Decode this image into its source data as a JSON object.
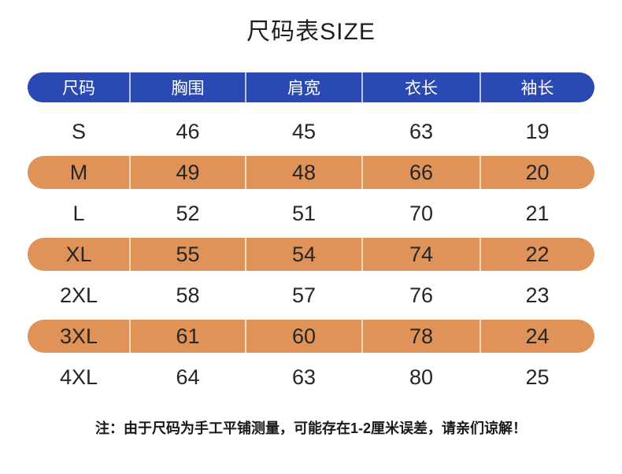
{
  "title": "尺码表SIZE",
  "note": "注：由于尺码为手工平铺测量，可能存在1-2厘米误差，请亲们谅解！",
  "colors": {
    "header_bg": "#2a49b2",
    "header_text": "#ffffff",
    "header_divider": "#b9c5ea",
    "highlight_row_bg": "#e09358",
    "highlight_row_divider": "#f3dcc2",
    "body_text": "#262626",
    "page_bg": "#ffffff"
  },
  "table": {
    "columns": [
      "尺码",
      "胸围",
      "肩宽",
      "衣长",
      "袖长"
    ],
    "rows": [
      {
        "highlight": false,
        "cells": [
          "S",
          "46",
          "45",
          "63",
          "19"
        ]
      },
      {
        "highlight": true,
        "cells": [
          "M",
          "49",
          "48",
          "66",
          "20"
        ]
      },
      {
        "highlight": false,
        "cells": [
          "L",
          "52",
          "51",
          "70",
          "21"
        ]
      },
      {
        "highlight": true,
        "cells": [
          "XL",
          "55",
          "54",
          "74",
          "22"
        ]
      },
      {
        "highlight": false,
        "cells": [
          "2XL",
          "58",
          "57",
          "76",
          "23"
        ]
      },
      {
        "highlight": true,
        "cells": [
          "3XL",
          "61",
          "60",
          "78",
          "24"
        ]
      },
      {
        "highlight": false,
        "cells": [
          "4XL",
          "64",
          "63",
          "80",
          "25"
        ]
      }
    ]
  },
  "chart_data": {
    "type": "table",
    "title": "尺码表SIZE",
    "columns": [
      "尺码",
      "胸围",
      "肩宽",
      "衣长",
      "袖长"
    ],
    "rows": [
      [
        "S",
        46,
        45,
        63,
        19
      ],
      [
        "M",
        49,
        48,
        66,
        20
      ],
      [
        "L",
        52,
        51,
        70,
        21
      ],
      [
        "XL",
        55,
        54,
        74,
        22
      ],
      [
        "2XL",
        58,
        57,
        76,
        23
      ],
      [
        "3XL",
        61,
        60,
        78,
        24
      ],
      [
        "4XL",
        64,
        63,
        80,
        25
      ]
    ],
    "units": "厘米 (cm)",
    "note": "注：由于尺码为手工平铺测量，可能存在1-2厘米误差，请亲们谅解！"
  }
}
